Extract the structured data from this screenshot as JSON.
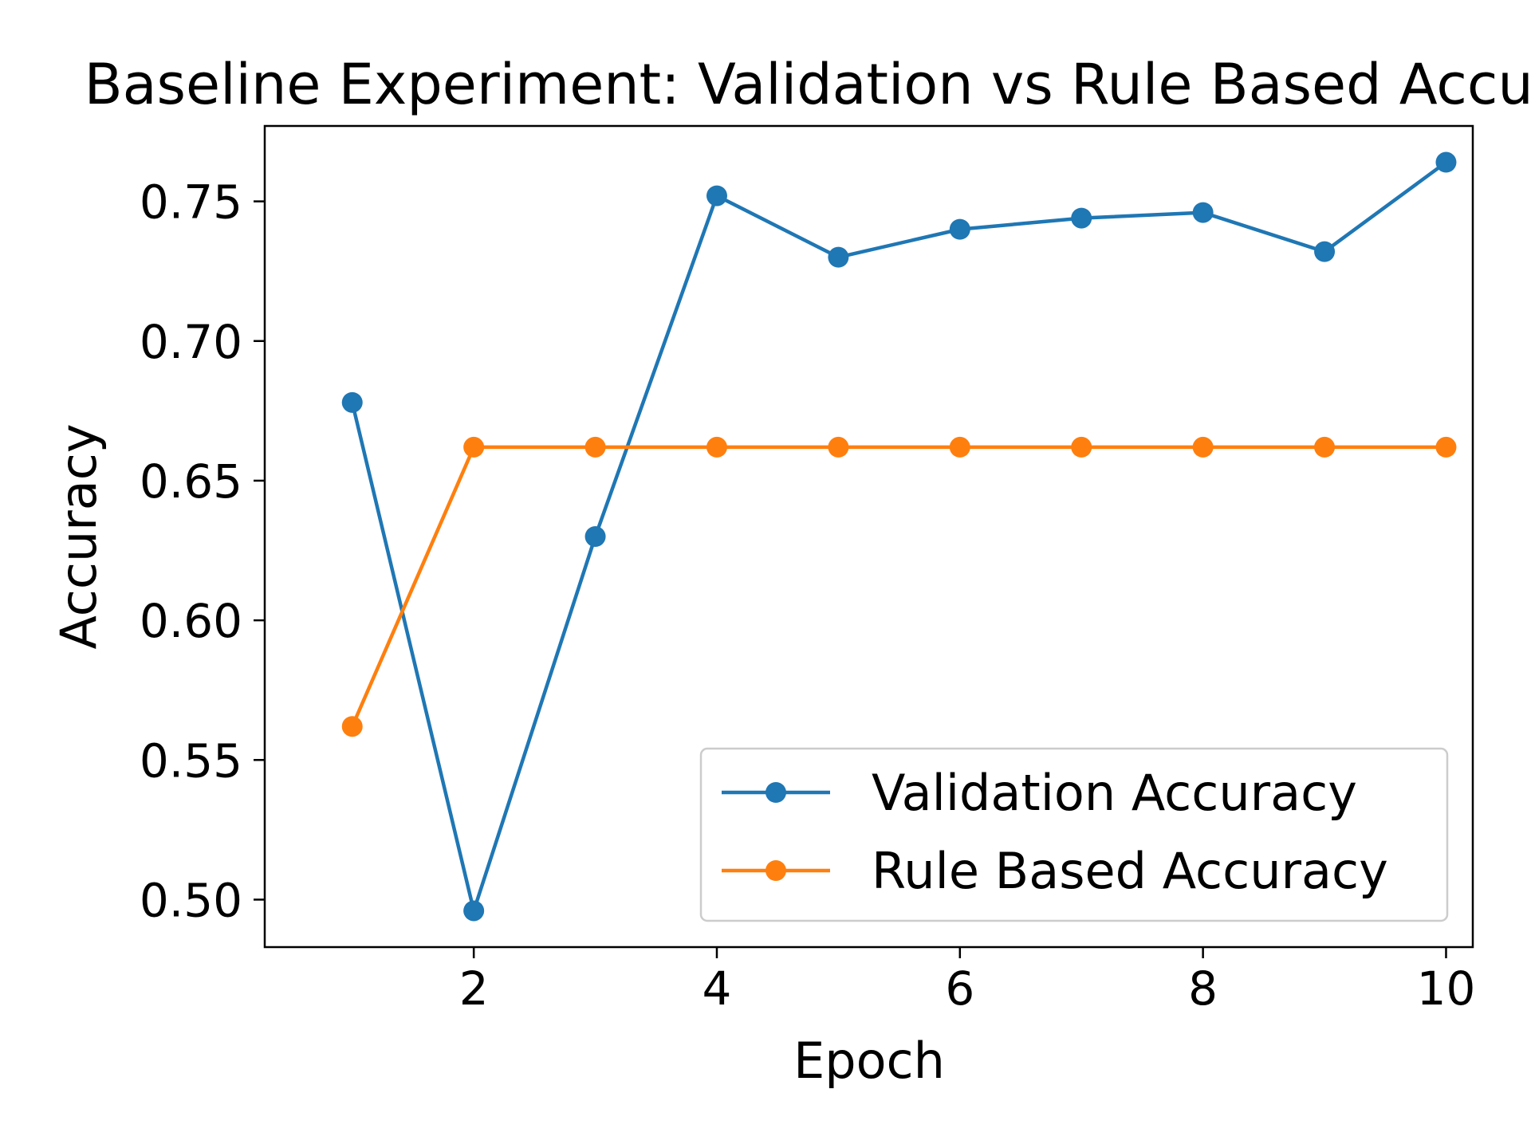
{
  "chart_data": {
    "type": "line",
    "title": "Baseline Experiment: Validation vs Rule Based Accuracy",
    "xlabel": "Epoch",
    "ylabel": "Accuracy",
    "xlim": [
      0.28,
      10.22
    ],
    "ylim": [
      0.483,
      0.777
    ],
    "x_ticks": [
      2,
      4,
      6,
      8,
      10
    ],
    "y_ticks": [
      0.5,
      0.55,
      0.6,
      0.65,
      0.7,
      0.75
    ],
    "y_tick_labels": [
      "0.50",
      "0.55",
      "0.60",
      "0.65",
      "0.70",
      "0.75"
    ],
    "x_tick_labels": [
      "2",
      "4",
      "6",
      "8",
      "10"
    ],
    "grid": false,
    "legend_position": "bottom-right",
    "x": [
      1,
      2,
      3,
      4,
      5,
      6,
      7,
      8,
      9,
      10
    ],
    "series": [
      {
        "name": "Validation Accuracy",
        "color": "#1f77b4",
        "marker": "circle",
        "values": [
          0.678,
          0.496,
          0.63,
          0.752,
          0.73,
          0.74,
          0.744,
          0.746,
          0.732,
          0.764
        ]
      },
      {
        "name": "Rule Based Accuracy",
        "color": "#ff7f0e",
        "marker": "circle",
        "values": [
          0.562,
          0.662,
          0.662,
          0.662,
          0.662,
          0.662,
          0.662,
          0.662,
          0.662,
          0.662
        ]
      }
    ]
  }
}
